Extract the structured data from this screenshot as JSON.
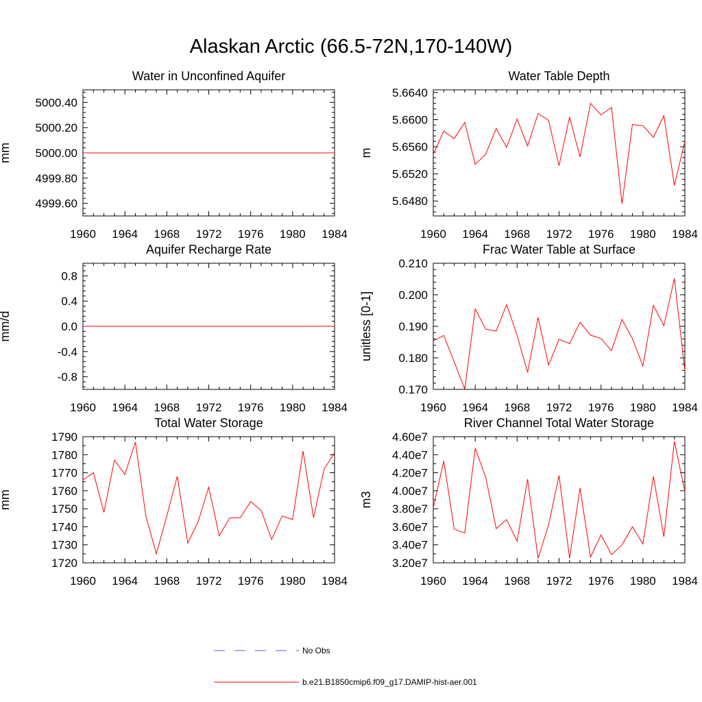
{
  "figure_title": "Alaskan Arctic (66.5-72N,170-140W)",
  "legend": {
    "obs_label": "No Obs",
    "model_label": "b.e21.B1850cmip6.f09_g17.DAMIP-hist-aer.001",
    "obs_color": "#5b5bd6",
    "model_color": "#ff0000"
  },
  "chart_data": [
    {
      "type": "line",
      "title": "Water in Unconfined Aquifer",
      "ylabel": "mm",
      "xlim": [
        1960,
        1984
      ],
      "ylim": [
        4999.5,
        5000.5
      ],
      "xticks": [
        1960,
        1964,
        1968,
        1972,
        1976,
        1980,
        1984
      ],
      "yticks": [
        4999.6,
        4999.8,
        5000.0,
        5000.2,
        5000.4
      ],
      "ytick_labels": [
        "4999.60",
        "4999.80",
        "5000.00",
        "5000.20",
        "5000.40"
      ],
      "yminor": 4,
      "x": [
        1960,
        1961,
        1962,
        1963,
        1964,
        1965,
        1966,
        1967,
        1968,
        1969,
        1970,
        1971,
        1972,
        1973,
        1974,
        1975,
        1976,
        1977,
        1978,
        1979,
        1980,
        1981,
        1982,
        1983,
        1984
      ],
      "values": [
        5000,
        5000,
        5000,
        5000,
        5000,
        5000,
        5000,
        5000,
        5000,
        5000,
        5000,
        5000,
        5000,
        5000,
        5000,
        5000,
        5000,
        5000,
        5000,
        5000,
        5000,
        5000,
        5000,
        5000,
        5000
      ],
      "color": "#ff0000"
    },
    {
      "type": "line",
      "title": "Water Table Depth",
      "ylabel": "m",
      "xlim": [
        1960,
        1984
      ],
      "ylim": [
        5.6458,
        5.6644
      ],
      "xticks": [
        1960,
        1964,
        1968,
        1972,
        1976,
        1980,
        1984
      ],
      "yticks": [
        5.648,
        5.652,
        5.656,
        5.66,
        5.664
      ],
      "ytick_labels": [
        "5.6480",
        "5.6520",
        "5.6560",
        "5.6600",
        "5.6640"
      ],
      "yminor": 4,
      "x": [
        1960,
        1961,
        1962,
        1963,
        1964,
        1965,
        1966,
        1967,
        1968,
        1969,
        1970,
        1971,
        1972,
        1973,
        1974,
        1975,
        1976,
        1977,
        1978,
        1979,
        1980,
        1981,
        1982,
        1983,
        1984
      ],
      "values": [
        5.6549,
        5.6583,
        5.6572,
        5.6596,
        5.6534,
        5.6549,
        5.6587,
        5.6559,
        5.6601,
        5.6561,
        5.6609,
        5.6599,
        5.6532,
        5.6604,
        5.6545,
        5.6624,
        5.6607,
        5.6618,
        5.6476,
        5.6593,
        5.6591,
        5.6574,
        5.6606,
        5.6503,
        5.6568
      ],
      "color": "#ff0000"
    },
    {
      "type": "line",
      "title": "Aquifer Recharge Rate",
      "ylabel": "mm/d",
      "xlim": [
        1960,
        1984
      ],
      "ylim": [
        -1.0,
        1.0
      ],
      "xticks": [
        1960,
        1964,
        1968,
        1972,
        1976,
        1980,
        1984
      ],
      "yticks": [
        -0.8,
        -0.4,
        0.0,
        0.4,
        0.8
      ],
      "ytick_labels": [
        "-0.8",
        "-0.4",
        "0.0",
        "0.4",
        "0.8"
      ],
      "yminor": 4,
      "x": [
        1960,
        1961,
        1962,
        1963,
        1964,
        1965,
        1966,
        1967,
        1968,
        1969,
        1970,
        1971,
        1972,
        1973,
        1974,
        1975,
        1976,
        1977,
        1978,
        1979,
        1980,
        1981,
        1982,
        1983,
        1984
      ],
      "values": [
        0,
        0,
        0,
        0,
        0,
        0,
        0,
        0,
        0,
        0,
        0,
        0,
        0,
        0,
        0,
        0,
        0,
        0,
        0,
        0,
        0,
        0,
        0,
        0,
        0
      ],
      "color": "#ff0000"
    },
    {
      "type": "line",
      "title": "Frac Water Table at Surface",
      "ylabel": "unitless [0-1]",
      "xlim": [
        1960,
        1984
      ],
      "ylim": [
        0.17,
        0.21
      ],
      "xticks": [
        1960,
        1964,
        1968,
        1972,
        1976,
        1980,
        1984
      ],
      "yticks": [
        0.17,
        0.18,
        0.19,
        0.2,
        0.21
      ],
      "ytick_labels": [
        "0.170",
        "0.180",
        "0.190",
        "0.200",
        "0.210"
      ],
      "yminor": 4,
      "x": [
        1960,
        1961,
        1962,
        1963,
        1964,
        1965,
        1966,
        1967,
        1968,
        1969,
        1970,
        1971,
        1972,
        1973,
        1974,
        1975,
        1976,
        1977,
        1978,
        1979,
        1980,
        1981,
        1982,
        1983,
        1984
      ],
      "values": [
        0.1854,
        0.1871,
        0.1787,
        0.1701,
        0.1955,
        0.1891,
        0.1885,
        0.1969,
        0.1871,
        0.1754,
        0.1928,
        0.1777,
        0.1859,
        0.1845,
        0.1913,
        0.1872,
        0.1861,
        0.1823,
        0.1922,
        0.1861,
        0.1774,
        0.1966,
        0.1902,
        0.2052,
        0.1758
      ],
      "color": "#ff0000"
    },
    {
      "type": "line",
      "title": "Total Water Storage",
      "ylabel": "mm",
      "xlim": [
        1960,
        1984
      ],
      "ylim": [
        1720,
        1790
      ],
      "xticks": [
        1960,
        1964,
        1968,
        1972,
        1976,
        1980,
        1984
      ],
      "yticks": [
        1720,
        1730,
        1740,
        1750,
        1760,
        1770,
        1780,
        1790
      ],
      "ytick_labels": [
        "1720",
        "1730",
        "1740",
        "1750",
        "1760",
        "1770",
        "1780",
        "1790"
      ],
      "yminor": 1,
      "x": [
        1960,
        1961,
        1962,
        1963,
        1964,
        1965,
        1966,
        1967,
        1968,
        1969,
        1970,
        1971,
        1972,
        1973,
        1974,
        1975,
        1976,
        1977,
        1978,
        1979,
        1980,
        1981,
        1982,
        1983,
        1984
      ],
      "values": [
        1766,
        1770,
        1748,
        1777,
        1769,
        1787,
        1746,
        1725,
        1746,
        1768,
        1731,
        1743,
        1762,
        1735,
        1745,
        1745,
        1754,
        1749,
        1733,
        1746,
        1744,
        1782,
        1745,
        1772,
        1781
      ],
      "color": "#ff0000"
    },
    {
      "type": "line",
      "title": "River Channel Total Water Storage",
      "ylabel": "m3",
      "xlim": [
        1960,
        1984
      ],
      "ylim": [
        32000000,
        46000000
      ],
      "xticks": [
        1960,
        1964,
        1968,
        1972,
        1976,
        1980,
        1984
      ],
      "yticks": [
        32000000,
        34000000,
        36000000,
        38000000,
        40000000,
        42000000,
        44000000,
        46000000
      ],
      "ytick_labels": [
        "3.20e7",
        "3.40e7",
        "3.60e7",
        "3.80e7",
        "4.00e7",
        "4.20e7",
        "4.40e7",
        "4.60e7"
      ],
      "yminor": 1,
      "x": [
        1960,
        1961,
        1962,
        1963,
        1964,
        1965,
        1966,
        1967,
        1968,
        1969,
        1970,
        1971,
        1972,
        1973,
        1974,
        1975,
        1976,
        1977,
        1978,
        1979,
        1980,
        1981,
        1982,
        1983,
        1984
      ],
      "values": [
        38100000,
        43300000,
        35750000,
        35300000,
        44700000,
        41500000,
        35800000,
        36800000,
        34400000,
        41300000,
        32500000,
        36200000,
        41700000,
        32500000,
        40300000,
        32650000,
        35100000,
        32900000,
        34000000,
        36000000,
        34100000,
        41600000,
        34900000,
        45500000,
        39900000
      ],
      "color": "#ff0000"
    }
  ]
}
